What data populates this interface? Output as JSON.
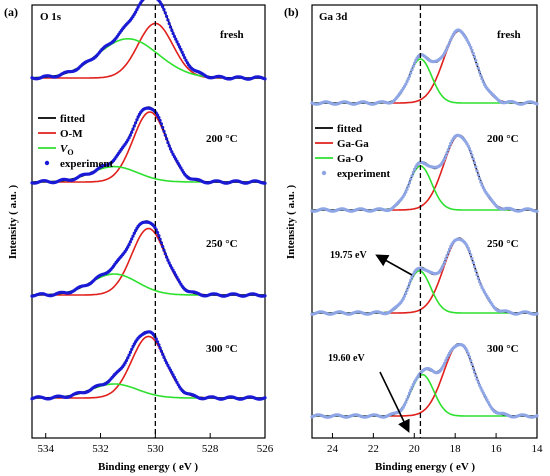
{
  "chart_data": [
    {
      "type": "line",
      "panel_label": "(a)",
      "core_level": "O 1s",
      "xlabel": "Binding energy ( eV )",
      "ylabel": "Intensity ( a.u. )",
      "x_ticks": [
        534,
        532,
        530,
        528,
        526
      ],
      "xlim": [
        534.5,
        526
      ],
      "reference_line_x": 530.0,
      "legend": {
        "placement": "left-middle",
        "entries": [
          {
            "label": "fitted",
            "color": "#000000",
            "style": "line"
          },
          {
            "label": "O-M",
            "color": "#e0201c",
            "style": "line"
          },
          {
            "label": "V",
            "sub": "O",
            "color": "#2ee02e",
            "style": "line"
          },
          {
            "label": "experiment",
            "color": "#1a1ad6",
            "style": "dot"
          }
        ]
      },
      "spectra": [
        {
          "condition": "fresh",
          "components": [
            {
              "name": "O-M",
              "color": "#e0201c",
              "center": 530.0,
              "fwhm": 1.5,
              "height": 0.78
            },
            {
              "name": "Vo",
              "color": "#2ee02e",
              "center": 531.0,
              "fwhm": 2.6,
              "height": 0.56
            }
          ]
        },
        {
          "condition": "200 °C",
          "components": [
            {
              "name": "O-M",
              "color": "#e0201c",
              "center": 530.2,
              "fwhm": 1.45,
              "height": 1.0
            },
            {
              "name": "Vo",
              "color": "#2ee02e",
              "center": 531.5,
              "fwhm": 2.0,
              "height": 0.22
            }
          ]
        },
        {
          "condition": "250 °C",
          "components": [
            {
              "name": "O-M",
              "color": "#e0201c",
              "center": 530.25,
              "fwhm": 1.45,
              "height": 0.95
            },
            {
              "name": "Vo",
              "color": "#2ee02e",
              "center": 531.5,
              "fwhm": 2.0,
              "height": 0.3
            }
          ]
        },
        {
          "condition": "300 °C",
          "components": [
            {
              "name": "O-M",
              "color": "#e0201c",
              "center": 530.25,
              "fwhm": 1.45,
              "height": 0.88
            },
            {
              "name": "Vo",
              "color": "#2ee02e",
              "center": 531.5,
              "fwhm": 2.0,
              "height": 0.2
            }
          ]
        }
      ]
    },
    {
      "type": "line",
      "panel_label": "(b)",
      "core_level": "Ga 3d",
      "xlabel": "Binding energy ( eV )",
      "ylabel": "Intensity ( a.u. )",
      "x_ticks": [
        24,
        22,
        20,
        18,
        16,
        14
      ],
      "xlim": [
        25,
        14
      ],
      "reference_line_x": 19.7,
      "legend": {
        "placement": "left-middle",
        "entries": [
          {
            "label": "fitted",
            "color": "#000000",
            "style": "line"
          },
          {
            "label": "Ga-Ga",
            "color": "#e0201c",
            "style": "line"
          },
          {
            "label": "Ga-O",
            "color": "#2ee02e",
            "style": "line"
          },
          {
            "label": "experiment",
            "color": "#8fa6e6",
            "style": "dot"
          }
        ]
      },
      "annotations": [
        {
          "text": "19.75 eV",
          "near_condition": "250 °C"
        },
        {
          "text": "19.60 eV",
          "near_condition": "300 °C"
        }
      ],
      "spectra": [
        {
          "condition": "fresh",
          "components": [
            {
              "name": "Ga-Ga",
              "color": "#e0201c",
              "center": 17.8,
              "fwhm": 1.8,
              "height": 0.82
            },
            {
              "name": "Ga-O",
              "color": "#2ee02e",
              "center": 19.7,
              "fwhm": 1.3,
              "height": 0.5
            }
          ]
        },
        {
          "condition": "200 °C",
          "components": [
            {
              "name": "Ga-Ga",
              "color": "#e0201c",
              "center": 17.8,
              "fwhm": 1.8,
              "height": 0.85
            },
            {
              "name": "Ga-O",
              "color": "#2ee02e",
              "center": 19.7,
              "fwhm": 1.3,
              "height": 0.5
            }
          ]
        },
        {
          "condition": "250 °C",
          "components": [
            {
              "name": "Ga-Ga",
              "color": "#e0201c",
              "center": 17.8,
              "fwhm": 1.8,
              "height": 0.85
            },
            {
              "name": "Ga-O",
              "color": "#2ee02e",
              "center": 19.75,
              "fwhm": 1.3,
              "height": 0.48
            }
          ]
        },
        {
          "condition": "300 °C",
          "components": [
            {
              "name": "Ga-Ga",
              "color": "#e0201c",
              "center": 17.8,
              "fwhm": 1.8,
              "height": 0.82
            },
            {
              "name": "Ga-O",
              "color": "#2ee02e",
              "center": 19.6,
              "fwhm": 1.3,
              "height": 0.47
            }
          ]
        }
      ]
    }
  ]
}
